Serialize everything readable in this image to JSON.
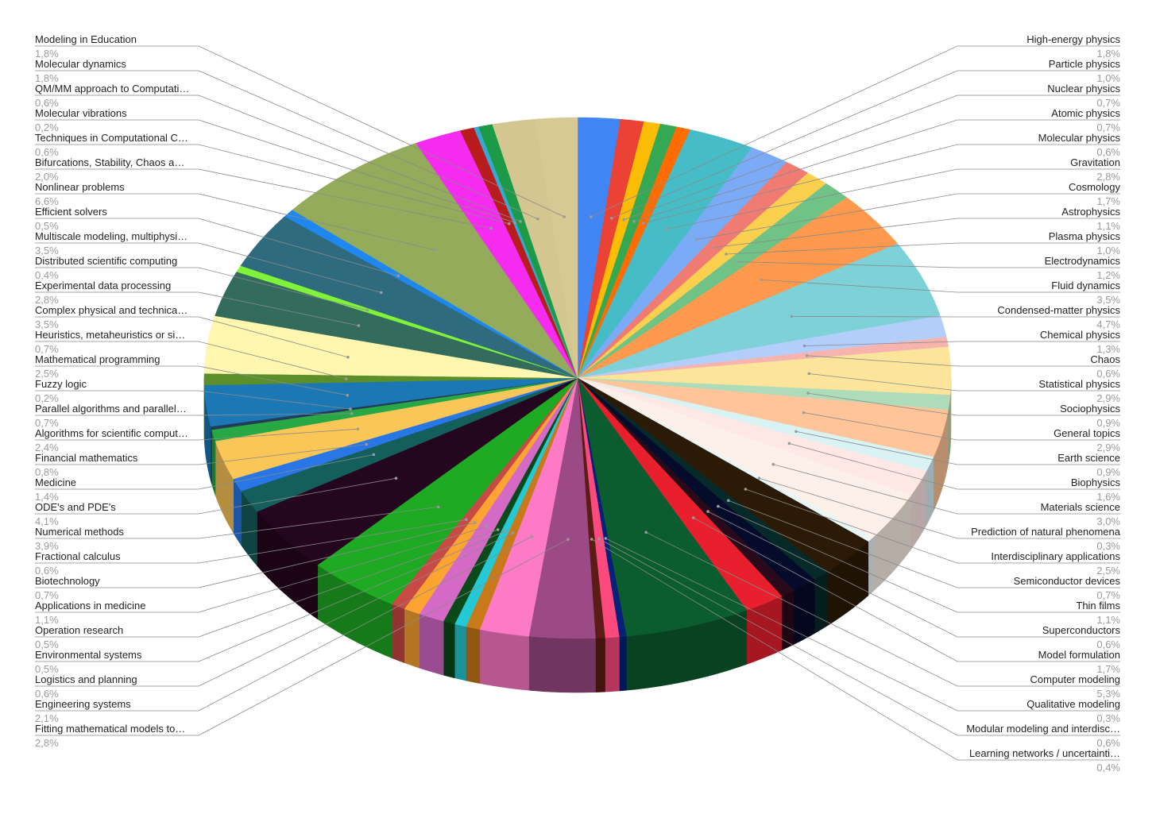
{
  "chart_data": {
    "type": "pie",
    "style": "3d-tilted",
    "start_angle_deg": 0,
    "direction": "clockwise",
    "legend": "labels around pie with leader lines",
    "slices": [
      {
        "label": "High-energy physics",
        "value_label": "1,8%",
        "value": 1.8,
        "color": "#4285f4"
      },
      {
        "label": "Particle physics",
        "value_label": "1,0%",
        "value": 1.0,
        "color": "#ea4335"
      },
      {
        "label": "Nuclear physics",
        "value_label": "0,7%",
        "value": 0.7,
        "color": "#fbbc04"
      },
      {
        "label": "Atomic physics",
        "value_label": "0,7%",
        "value": 0.7,
        "color": "#34a853"
      },
      {
        "label": "Molecular physics",
        "value_label": "0,6%",
        "value": 0.6,
        "color": "#ff6d01"
      },
      {
        "label": "Gravitation",
        "value_label": "2,8%",
        "value": 2.8,
        "color": "#46bdc6"
      },
      {
        "label": "Cosmology",
        "value_label": "1,7%",
        "value": 1.7,
        "color": "#7baaf7"
      },
      {
        "label": "Astrophysics",
        "value_label": "1,1%",
        "value": 1.1,
        "color": "#f07b72"
      },
      {
        "label": "Plasma physics",
        "value_label": "1,0%",
        "value": 1.0,
        "color": "#fcd04f"
      },
      {
        "label": "Electrodynamics",
        "value_label": "1,2%",
        "value": 1.2,
        "color": "#71c287"
      },
      {
        "label": "Fluid dynamics",
        "value_label": "3,5%",
        "value": 3.5,
        "color": "#ff994d"
      },
      {
        "label": "Condensed-matter physics",
        "value_label": "4,7%",
        "value": 4.7,
        "color": "#7ed1d7"
      },
      {
        "label": "Chemical physics",
        "value_label": "1,3%",
        "value": 1.3,
        "color": "#b3cefb"
      },
      {
        "label": "Chaos",
        "value_label": "0,6%",
        "value": 0.6,
        "color": "#f7b4ae"
      },
      {
        "label": "Statistical physics",
        "value_label": "2,9%",
        "value": 2.9,
        "color": "#fde49b"
      },
      {
        "label": "Sociophysics",
        "value_label": "0,9%",
        "value": 0.9,
        "color": "#aedcba"
      },
      {
        "label": "General topics",
        "value_label": "2,9%",
        "value": 2.9,
        "color": "#ffc599"
      },
      {
        "label": "Earth science",
        "value_label": "0,9%",
        "value": 0.9,
        "color": "#d9f2f4"
      },
      {
        "label": "Biophysics",
        "value_label": "1,6%",
        "value": 1.6,
        "color": "#fde8e6"
      },
      {
        "label": "Materials science",
        "value_label": "3,0%",
        "value": 3.0,
        "color": "#fdf0e8"
      },
      {
        "label": "Prediction of natural phenomena",
        "value_label": "0,3%",
        "value": 0.3,
        "color": "#e8f6f8"
      },
      {
        "label": "Interdisciplinary applications",
        "value_label": "2,5%",
        "value": 2.5,
        "color": "#2b1a06"
      },
      {
        "label": "Semiconductor devices",
        "value_label": "0,7%",
        "value": 0.7,
        "color": "#062a2a"
      },
      {
        "label": "Thin films",
        "value_label": "1,1%",
        "value": 1.1,
        "color": "#050b2a"
      },
      {
        "label": "Superconductors",
        "value_label": "0,6%",
        "value": 0.6,
        "color": "#2a0a1a"
      },
      {
        "label": "Model formulation",
        "value_label": "1,7%",
        "value": 1.7,
        "color": "#e8202e"
      },
      {
        "label": "Computer modeling",
        "value_label": "5,3%",
        "value": 5.3,
        "color": "#0b5c2e"
      },
      {
        "label": "Qualitative modeling",
        "value_label": "0,3%",
        "value": 0.3,
        "color": "#07207a"
      },
      {
        "label": "Modular modeling and interdisc…",
        "value_label": "0,6%",
        "value": 0.6,
        "color": "#fd4a7e"
      },
      {
        "label": "Learning networks / uncertainti…",
        "value_label": "0,4%",
        "value": 0.4,
        "color": "#5a1c14"
      },
      {
        "label": "Fitting mathematical models to…",
        "value_label": "2,8%",
        "value": 2.8,
        "color": "#9c4a85"
      },
      {
        "label": "Engineering systems",
        "value_label": "2,1%",
        "value": 2.1,
        "color": "#fd7ac7"
      },
      {
        "label": "Logistics and planning",
        "value_label": "0,6%",
        "value": 0.6,
        "color": "#c87a1a"
      },
      {
        "label": "Environmental systems",
        "value_label": "0,5%",
        "value": 0.5,
        "color": "#25c9d5"
      },
      {
        "label": "Operation research",
        "value_label": "0,5%",
        "value": 0.5,
        "color": "#0a4a1a"
      },
      {
        "label": "Applications in medicine",
        "value_label": "1,1%",
        "value": 1.1,
        "color": "#d46ac6"
      },
      {
        "label": "Biotechnology",
        "value_label": "0,7%",
        "value": 0.7,
        "color": "#fca432"
      },
      {
        "label": "Fractional calculus",
        "value_label": "0,6%",
        "value": 0.6,
        "color": "#c84a44"
      },
      {
        "label": "Numerical methods",
        "value_label": "3,9%",
        "value": 3.9,
        "color": "#1faa24"
      },
      {
        "label": "ODE's and PDE's",
        "value_label": "4,1%",
        "value": 4.1,
        "color": "#24061e"
      },
      {
        "label": "Medicine",
        "value_label": "1,4%",
        "value": 1.4,
        "color": "#145e5c"
      },
      {
        "label": "Financial mathematics",
        "value_label": "0,8%",
        "value": 0.8,
        "color": "#2977e6"
      },
      {
        "label": "Algorithms for scientific comput…",
        "value_label": "2,4%",
        "value": 2.4,
        "color": "#fbc658"
      },
      {
        "label": "Parallel algorithms and parallel…",
        "value_label": "0,7%",
        "value": 0.7,
        "color": "#27a845"
      },
      {
        "label": "Fuzzy logic",
        "value_label": "0,2%",
        "value": 0.2,
        "color": "#223b56"
      },
      {
        "label": "Mathematical programming",
        "value_label": "2,5%",
        "value": 2.5,
        "color": "#1b78b5"
      },
      {
        "label": "Heuristics, metaheuristics or si…",
        "value_label": "0,7%",
        "value": 0.7,
        "color": "#5c8f2a"
      },
      {
        "label": "Complex physical and technica…",
        "value_label": "3,5%",
        "value": 3.5,
        "color": "#fff6b0"
      },
      {
        "label": "Experimental data processing",
        "value_label": "2,8%",
        "value": 2.8,
        "color": "#336b5c"
      },
      {
        "label": "Distributed scientific computing",
        "value_label": "0,4%",
        "value": 0.4,
        "color": "#7ff23a"
      },
      {
        "label": "Multiscale modeling, multiphysi…",
        "value_label": "3,5%",
        "value": 3.5,
        "color": "#2e6b7f"
      },
      {
        "label": "Efficient solvers",
        "value_label": "0,5%",
        "value": 0.5,
        "color": "#1e88f0"
      },
      {
        "label": "Nonlinear problems",
        "value_label": "6,6%",
        "value": 6.6,
        "color": "#93ab5a"
      },
      {
        "label": "Bifurcations, Stability, Chaos a…",
        "value_label": "2,0%",
        "value": 2.0,
        "color": "#f52bf0"
      },
      {
        "label": "Techniques in Computational C…",
        "value_label": "0,6%",
        "value": 0.6,
        "color": "#b81c1c"
      },
      {
        "label": "Molecular vibrations",
        "value_label": "0,2%",
        "value": 0.2,
        "color": "#36a9d3"
      },
      {
        "label": "QM/MM approach to Computati…",
        "value_label": "0,6%",
        "value": 0.6,
        "color": "#1d9a48"
      },
      {
        "label": "Molecular dynamics",
        "value_label": "1,8%",
        "value": 1.8,
        "color": "#d3c690"
      },
      {
        "label": "Modeling in Education",
        "value_label": "1,8%",
        "value": 1.8,
        "color": "#d6c994"
      }
    ]
  }
}
